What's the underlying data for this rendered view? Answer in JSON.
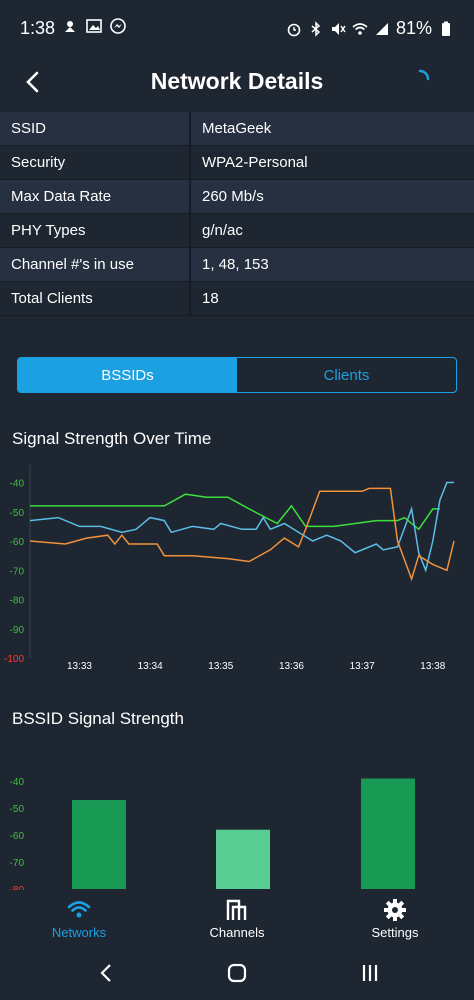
{
  "status": {
    "time": "1:38",
    "battery": "81%"
  },
  "header": {
    "title": "Network Details"
  },
  "details": [
    {
      "key": "SSID",
      "value": "MetaGeek"
    },
    {
      "key": "Security",
      "value": "WPA2-Personal"
    },
    {
      "key": "Max Data Rate",
      "value": "260 Mb/s"
    },
    {
      "key": "PHY Types",
      "value": "g/n/ac"
    },
    {
      "key": "Channel #'s in use",
      "value": "1, 48, 153"
    },
    {
      "key": "Total Clients",
      "value": "18"
    }
  ],
  "tabs": [
    {
      "label": "BSSIDs",
      "active": true
    },
    {
      "label": "Clients",
      "active": false
    }
  ],
  "signal_chart_title": "Signal Strength Over Time",
  "bssid_chart_title": "BSSID Signal Strength",
  "colors": {
    "accent": "#1ba0e2",
    "green": "#3ce03c",
    "blue": "#5cbde6",
    "orange": "#f0923c",
    "axis_label": "#3fbf3f",
    "axis_label_red": "#ff3b30",
    "bar_dark": "#189a55",
    "bar_light": "#57cc93"
  },
  "chart_data": [
    {
      "type": "line",
      "title": "Signal Strength Over Time",
      "x_ticks": [
        "13:33",
        "13:34",
        "13:35",
        "13:36",
        "13:37",
        "13:38"
      ],
      "y_ticks": [
        -40,
        -50,
        -60,
        -70,
        -80,
        -90,
        -100
      ],
      "ylim": [
        -100,
        -34
      ],
      "xlim": [
        "13:32.3",
        "13:38.3"
      ],
      "series": [
        {
          "color": "green",
          "points": [
            [
              "13:32.3",
              -48
            ],
            [
              "13:33.5",
              -48
            ],
            [
              "13:34.2",
              -48
            ],
            [
              "13:34.5",
              -44
            ],
            [
              "13:34.8",
              -45
            ],
            [
              "13:35.1",
              -45
            ],
            [
              "13:35.4",
              -49
            ],
            [
              "13:35.8",
              -54
            ],
            [
              "13:36.0",
              -48
            ],
            [
              "13:36.2",
              -55
            ],
            [
              "13:36.6",
              -55
            ],
            [
              "13:36.9",
              -54
            ],
            [
              "13:37.2",
              -53
            ],
            [
              "13:37.5",
              -53
            ],
            [
              "13:37.6",
              -52
            ],
            [
              "13:37.8",
              -56
            ],
            [
              "13:38.0",
              -49
            ],
            [
              "13:38.1",
              -49
            ]
          ]
        },
        {
          "color": "blue",
          "points": [
            [
              "13:32.3",
              -53
            ],
            [
              "13:32.7",
              -52
            ],
            [
              "13:33.0",
              -55
            ],
            [
              "13:33.3",
              -55
            ],
            [
              "13:33.6",
              -57
            ],
            [
              "13:33.8",
              -56
            ],
            [
              "13:34.0",
              -52
            ],
            [
              "13:34.2",
              -53
            ],
            [
              "13:34.3",
              -57
            ],
            [
              "13:34.6",
              -55
            ],
            [
              "13:34.9",
              -56
            ],
            [
              "13:35.0",
              -54
            ],
            [
              "13:35.3",
              -56
            ],
            [
              "13:35.5",
              -56
            ],
            [
              "13:35.6",
              -52
            ],
            [
              "13:35.7",
              -56
            ],
            [
              "13:35.9",
              -54
            ],
            [
              "13:36.1",
              -57
            ],
            [
              "13:36.3",
              -60
            ],
            [
              "13:36.5",
              -58
            ],
            [
              "13:36.7",
              -60
            ],
            [
              "13:36.9",
              -64
            ],
            [
              "13:37.2",
              -61
            ],
            [
              "13:37.3",
              -63
            ],
            [
              "13:37.5",
              -62
            ],
            [
              "13:37.7",
              -49
            ],
            [
              "13:37.8",
              -64
            ],
            [
              "13:37.9",
              -70
            ],
            [
              "13:38.0",
              -60
            ],
            [
              "13:38.1",
              -46
            ],
            [
              "13:38.2",
              -40
            ],
            [
              "13:38.3",
              -40
            ]
          ]
        },
        {
          "color": "orange",
          "points": [
            [
              "13:32.3",
              -60
            ],
            [
              "13:32.8",
              -61
            ],
            [
              "13:33.1",
              -59
            ],
            [
              "13:33.4",
              -58
            ],
            [
              "13:33.5",
              -61
            ],
            [
              "13:33.6",
              -58
            ],
            [
              "13:33.7",
              -61
            ],
            [
              "13:34.1",
              -61
            ],
            [
              "13:34.2",
              -65
            ],
            [
              "13:34.6",
              -65
            ],
            [
              "13:35.1",
              -66
            ],
            [
              "13:35.4",
              -67
            ],
            [
              "13:35.7",
              -63
            ],
            [
              "13:35.9",
              -59
            ],
            [
              "13:36.1",
              -62
            ],
            [
              "13:36.2",
              -56
            ],
            [
              "13:36.4",
              -43
            ],
            [
              "13:36.8",
              -43
            ],
            [
              "13:37.0",
              -43
            ],
            [
              "13:37.1",
              -42
            ],
            [
              "13:37.4",
              -42
            ],
            [
              "13:37.5",
              -60
            ],
            [
              "13:37.7",
              -73
            ],
            [
              "13:37.8",
              -65
            ],
            [
              "13:38.0",
              -68
            ],
            [
              "13:38.2",
              -70
            ],
            [
              "13:38.3",
              -60
            ]
          ]
        }
      ]
    },
    {
      "type": "bar",
      "title": "BSSID Signal Strength",
      "y_ticks": [
        -40,
        -50,
        -60,
        -70,
        -80
      ],
      "ylim": [
        -80,
        -34
      ],
      "values": [
        -47,
        -58,
        -39
      ],
      "bar_colors": [
        "bar_dark",
        "bar_light",
        "bar_dark"
      ]
    }
  ],
  "nav": [
    {
      "label": "Networks",
      "icon": "wifi-icon",
      "active": true
    },
    {
      "label": "Channels",
      "icon": "channels-icon",
      "active": false
    },
    {
      "label": "Settings",
      "icon": "gear-icon",
      "active": false
    }
  ]
}
